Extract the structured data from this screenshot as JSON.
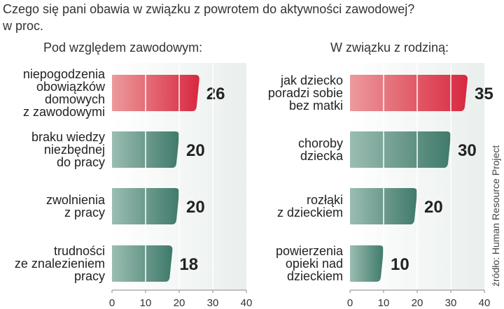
{
  "title": "Czego się pani obawia w związku z powrotem do aktywności zawodowej?",
  "subtitle": "w proc.",
  "source": "źródło: Human Resource Project",
  "colors": {
    "highlight_bar": "#d82840",
    "regular_bar": "#3f7a6a",
    "panel_bg": "#e9efec",
    "grid": "#ffffff"
  },
  "chart_data": [
    {
      "type": "bar",
      "orientation": "horizontal",
      "title": "Pod względem zawodowym:",
      "xlim": [
        0,
        40
      ],
      "xticks": [
        0,
        10,
        20,
        30,
        40
      ],
      "categories": [
        [
          "niepogodzenia",
          "obowiązków",
          "domowych",
          "z zawodowymi"
        ],
        [
          "braku wiedzy",
          "niezbędnej",
          "do pracy"
        ],
        [
          "zwolnienia",
          "z pracy"
        ],
        [
          "trudności",
          "ze znalezieniem",
          "pracy"
        ]
      ],
      "values": [
        26,
        20,
        20,
        18
      ],
      "highlight_index": 0
    },
    {
      "type": "bar",
      "orientation": "horizontal",
      "title": "W związku z rodziną:",
      "xlim": [
        0,
        40
      ],
      "xticks": [
        0,
        10,
        20,
        30,
        40
      ],
      "categories": [
        [
          "jak dziecko",
          "poradzi sobie",
          "bez matki"
        ],
        [
          "choroby",
          "dziecka"
        ],
        [
          "rozłąki",
          "z dzieckiem"
        ],
        [
          "powierzenia",
          "opieki nad",
          "dzieckiem"
        ]
      ],
      "values": [
        35,
        30,
        20,
        10
      ],
      "highlight_index": 0
    }
  ]
}
